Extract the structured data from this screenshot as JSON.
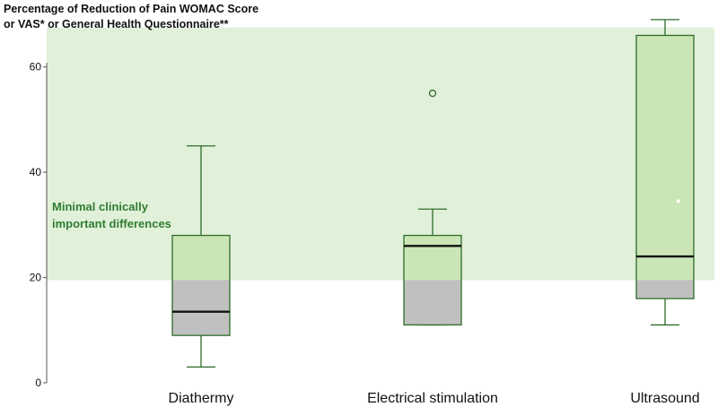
{
  "chart_data": {
    "type": "box",
    "title_lines": [
      "Percentage of Reduction of Pain WOMAC Score",
      "or VAS* or General Health Questionnaire**"
    ],
    "xlabel": "",
    "ylabel": "",
    "ylim": [
      0,
      70
    ],
    "yticks": [
      0,
      20,
      40,
      60
    ],
    "categories": [
      "Diathermy",
      "Electrical stimulation",
      "Ultrasound"
    ],
    "boxes": [
      {
        "category": "Diathermy",
        "whisker_low": 3,
        "q1": 9,
        "median": 13.5,
        "q3": 28,
        "whisker_high": 45,
        "outliers": [],
        "mean": null
      },
      {
        "category": "Electrical stimulation",
        "whisker_low": 11,
        "q1": 11,
        "median": 26,
        "q3": 28,
        "whisker_high": 33,
        "outliers": [
          55
        ],
        "mean": null
      },
      {
        "category": "Ultrasound",
        "whisker_low": 11,
        "q1": 16,
        "median": 24,
        "q3": 66,
        "whisker_high": 69,
        "outliers": [],
        "mean": 34.5
      }
    ],
    "shaded_band": {
      "from": 19.5,
      "to": 67.5,
      "label_lines": [
        "Minimal clinically",
        "important differences"
      ],
      "color": "#e1f0d9"
    },
    "colors": {
      "box_above_band": "#cbe6b6",
      "box_below_band": "#c0c0c0",
      "box_outline": "#2e6b2a",
      "band_label": "#2e7d32"
    },
    "grid": false,
    "legend": "none"
  }
}
